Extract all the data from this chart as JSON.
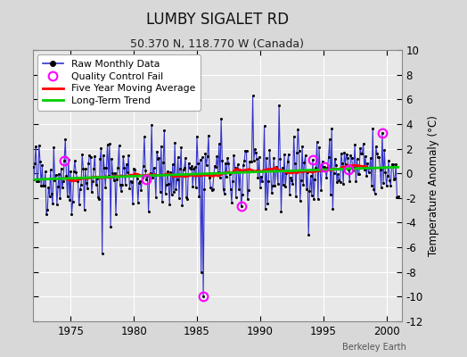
{
  "title": "LUMBY SIGALET RD",
  "subtitle": "50.370 N, 118.770 W (Canada)",
  "ylabel": "Temperature Anomaly (°C)",
  "watermark": "Berkeley Earth",
  "ylim": [
    -12,
    10
  ],
  "xlim": [
    1972.0,
    2001.2
  ],
  "yticks": [
    -12,
    -10,
    -8,
    -6,
    -4,
    -2,
    0,
    2,
    4,
    6,
    8,
    10
  ],
  "xticks": [
    1975,
    1980,
    1985,
    1990,
    1995,
    2000
  ],
  "fig_bg_color": "#d8d8d8",
  "plot_bg_color": "#e8e8e8",
  "raw_color": "#3333cc",
  "dot_color": "#000000",
  "ma_color": "#ff0000",
  "trend_color": "#00cc00",
  "qc_color": "#ff00ff",
  "grid_color": "#ffffff",
  "seed": 42
}
